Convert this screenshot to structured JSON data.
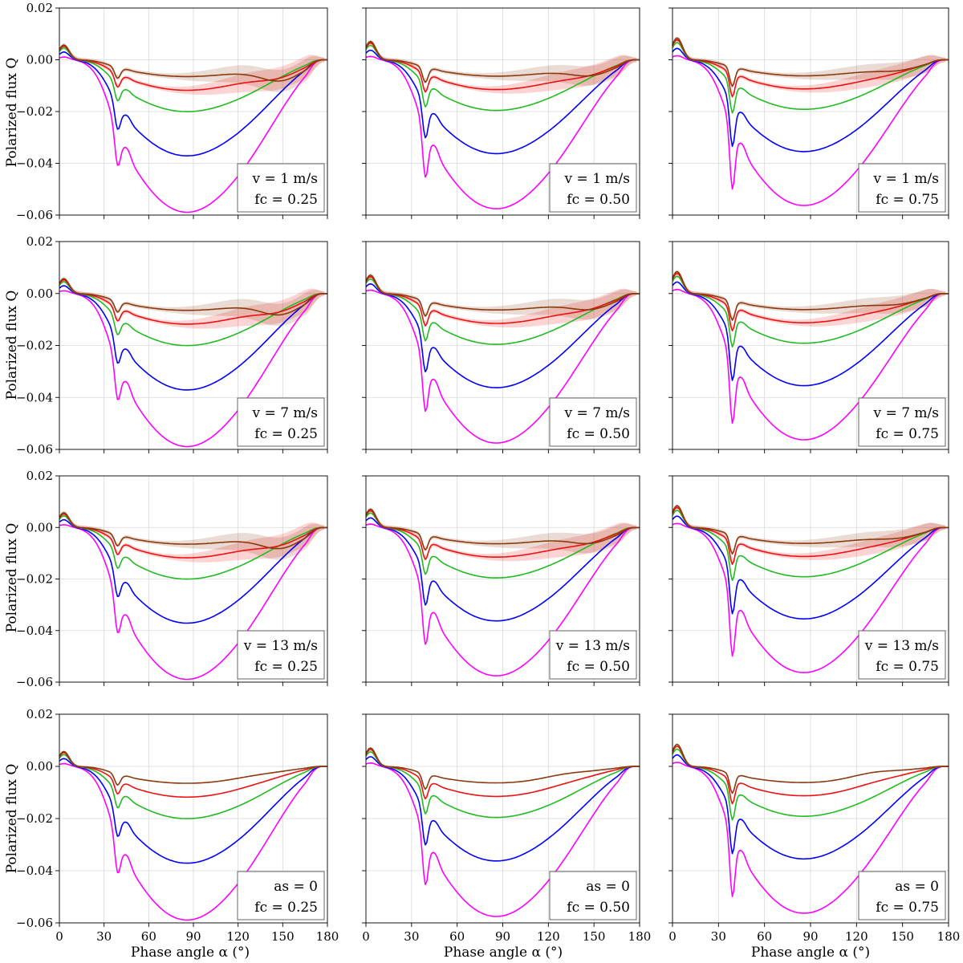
{
  "figure": {
    "ylabel": "Polarized flux Q",
    "xlabel": "Phase angle α (°)"
  },
  "chart_data": {
    "type": "line",
    "layout": "4x3 grid of panels (rows: v = 1, 7, 13 m/s, a_s = 0; columns: f_c = 0.25, 0.50, 0.75)",
    "xlim": [
      0,
      180
    ],
    "ylim": [
      -0.06,
      0.02
    ],
    "xticks": [
      "0",
      "30",
      "60",
      "90",
      "120",
      "150",
      "180"
    ],
    "yticks": [
      "0.02",
      "0.00",
      "−0.02",
      "−0.04",
      "−0.06"
    ],
    "grid": true,
    "legend_placement": "bottom-right",
    "series_colors": [
      "#ff00ff",
      "#0000ff",
      "#22bb22",
      "#ee1111",
      "#8b3a0e"
    ],
    "row_conditions": [
      "v = 1 m/s",
      "v = 7 m/s",
      "v = 13 m/s",
      "as = 0"
    ],
    "col_conditions": [
      "fc = 0.25",
      "fc = 0.50",
      "fc = 0.75"
    ],
    "panels": [
      {
        "row": 0,
        "col": 0,
        "label1": "v = 1 m/s",
        "label2": "fc = 0.25"
      },
      {
        "row": 0,
        "col": 1,
        "label1": "v = 1 m/s",
        "label2": "fc = 0.50"
      },
      {
        "row": 0,
        "col": 2,
        "label1": "v = 1 m/s",
        "label2": "fc = 0.75"
      },
      {
        "row": 1,
        "col": 0,
        "label1": "v = 7 m/s",
        "label2": "fc = 0.25"
      },
      {
        "row": 1,
        "col": 1,
        "label1": "v = 7 m/s",
        "label2": "fc = 0.50"
      },
      {
        "row": 1,
        "col": 2,
        "label1": "v = 7 m/s",
        "label2": "fc = 0.75"
      },
      {
        "row": 2,
        "col": 0,
        "label1": "v = 13 m/s",
        "label2": "fc = 0.25"
      },
      {
        "row": 2,
        "col": 1,
        "label1": "v = 13 m/s",
        "label2": "fc = 0.50"
      },
      {
        "row": 2,
        "col": 2,
        "label1": "v = 13 m/s",
        "label2": "fc = 0.75"
      },
      {
        "row": 3,
        "col": 0,
        "label1": "as = 0",
        "label2": "fc = 0.25"
      },
      {
        "row": 3,
        "col": 1,
        "label1": "as = 0",
        "label2": "fc = 0.50"
      },
      {
        "row": 3,
        "col": 2,
        "label1": "as = 0",
        "label2": "fc = 0.75"
      }
    ],
    "approx_minima": {
      "note": "approximate minimum Q of the magenta curve per column",
      "values": [
        -0.0565,
        -0.0552,
        -0.054
      ]
    }
  }
}
